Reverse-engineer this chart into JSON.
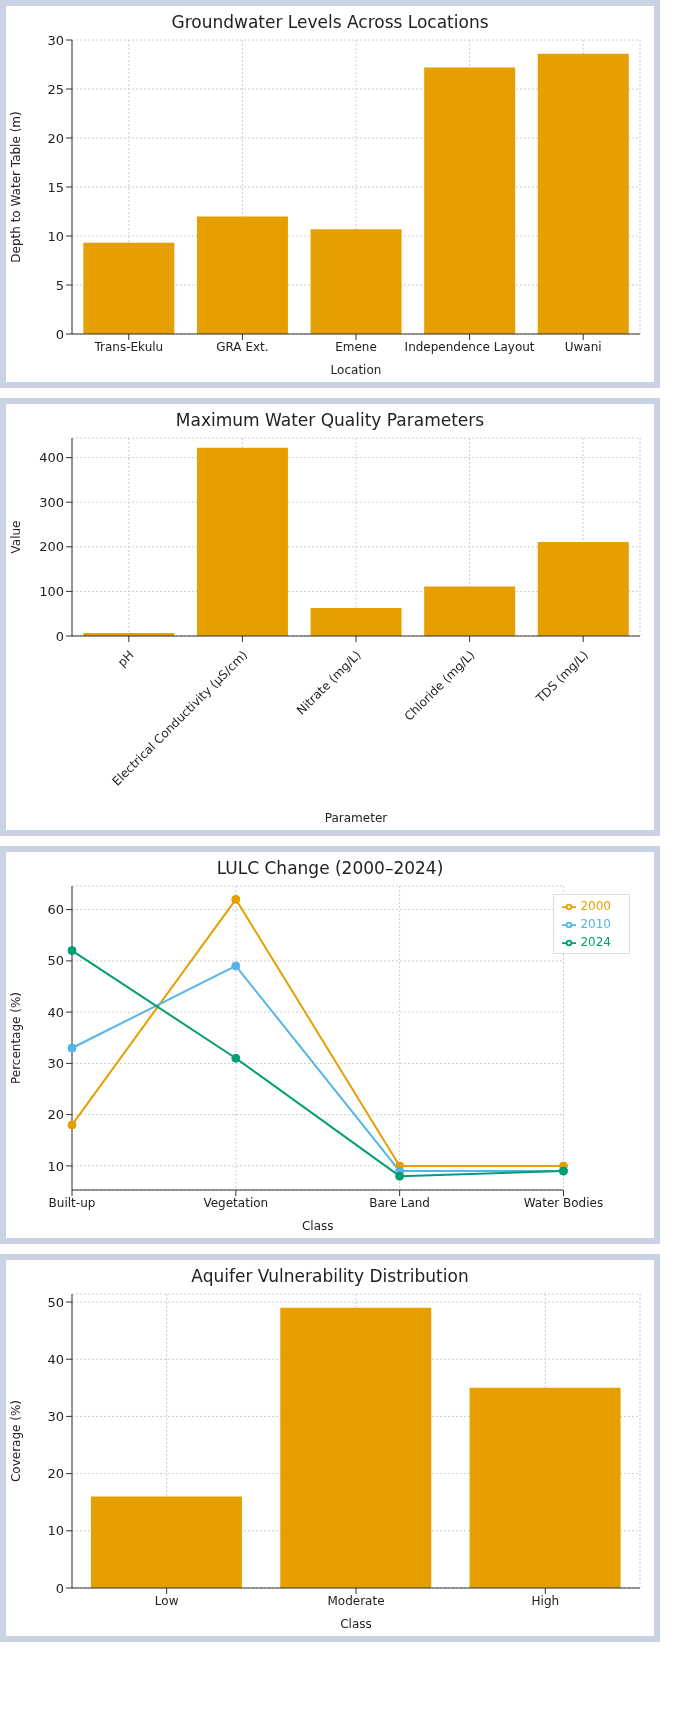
{
  "chart_data": [
    {
      "type": "bar",
      "title": "Groundwater Levels Across Locations",
      "xlabel": "Location",
      "ylabel": "Depth to Water Table (m)",
      "categories": [
        "Trans-Ekulu",
        "GRA Ext.",
        "Emene",
        "Independence Layout",
        "Uwani"
      ],
      "values": [
        9.3,
        12.0,
        10.7,
        27.2,
        28.6
      ],
      "color": "#e69f00",
      "ylim": [
        0,
        30
      ],
      "yticks": [
        0,
        5,
        10,
        15,
        20,
        25,
        30
      ],
      "grid": true
    },
    {
      "type": "bar",
      "title": "Maximum Water Quality Parameters",
      "xlabel": "Parameter",
      "ylabel": "Value",
      "categories": [
        "pH",
        "Electrical Conductivity (µS/cm)",
        "Nitrate (mg/L)",
        "Chloride (mg/L)",
        "TDS (mg/L)"
      ],
      "values": [
        7,
        422,
        63,
        111,
        211
      ],
      "color": "#e69f00",
      "ylim": [
        0,
        444
      ],
      "yticks": [
        0,
        100,
        200,
        300,
        400
      ],
      "grid": true
    },
    {
      "type": "line",
      "title": "LULC Change (2000–2024)",
      "xlabel": "Class",
      "ylabel": "Percentage (%)",
      "categories": [
        "Built-up",
        "Vegetation",
        "Bare Land",
        "Water Bodies"
      ],
      "series": [
        {
          "name": "2000",
          "color": "#e69f00",
          "values": [
            18,
            62,
            10,
            10
          ]
        },
        {
          "name": "2010",
          "color": "#56b4e9",
          "values": [
            33,
            49,
            9,
            9
          ]
        },
        {
          "name": "2024",
          "color": "#009e73",
          "values": [
            52,
            31,
            8,
            9
          ]
        }
      ],
      "ylim": [
        5.3,
        64.6
      ],
      "yticks": [
        10,
        20,
        30,
        40,
        50,
        60
      ],
      "grid": true,
      "legend": "top right",
      "marker": "circle",
      "line_style": "solid"
    },
    {
      "type": "bar",
      "title": "Aquifer Vulnerability Distribution",
      "xlabel": "Class",
      "ylabel": "Coverage (%)",
      "categories": [
        "Low",
        "Moderate",
        "High"
      ],
      "values": [
        16,
        49,
        35
      ],
      "color": "#e69f00",
      "ylim": [
        0,
        51.4
      ],
      "yticks": [
        0,
        10,
        20,
        30,
        40,
        50
      ],
      "grid": true
    }
  ]
}
